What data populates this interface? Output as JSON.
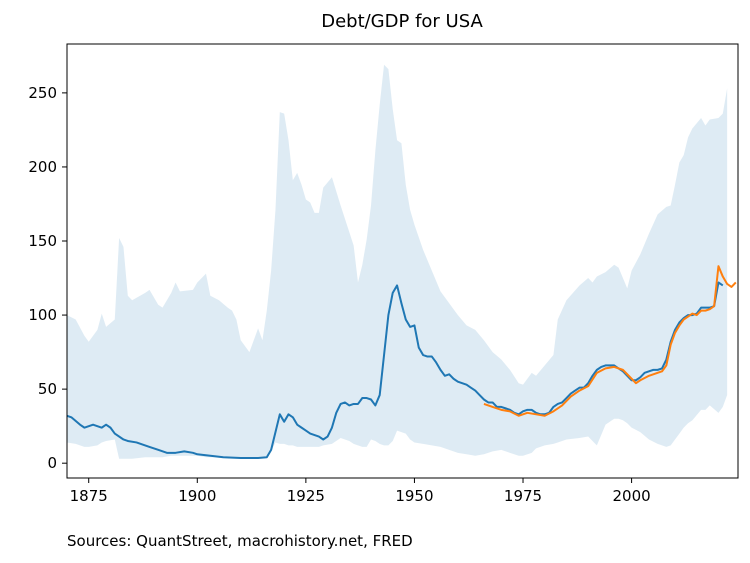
{
  "chart_data": {
    "type": "line",
    "title": "Debt/GDP for USA",
    "source": "Sources: QuantStreet, macrohistory.net, FRED",
    "xlim": [
      1870,
      2024.5
    ],
    "ylim": [
      -10,
      283
    ],
    "xticks": [
      1875,
      1900,
      1925,
      1950,
      1975,
      2000
    ],
    "yticks": [
      0,
      50,
      100,
      150,
      200,
      250
    ],
    "band": {
      "color": "#1f77b4",
      "alpha": 0.15,
      "x": [
        1870,
        1872,
        1874,
        1875,
        1877,
        1878,
        1879,
        1881,
        1882,
        1883,
        1884,
        1885,
        1888,
        1889,
        1891,
        1892,
        1894,
        1895,
        1896,
        1899,
        1900,
        1902,
        1903,
        1905,
        1907,
        1908,
        1909,
        1910,
        1912,
        1914,
        1915,
        1916,
        1917,
        1918,
        1919,
        1920,
        1921,
        1922,
        1923,
        1924,
        1925,
        1926,
        1927,
        1928,
        1929,
        1931,
        1933,
        1935,
        1936,
        1937,
        1938,
        1939,
        1940,
        1941,
        1942,
        1943,
        1944,
        1945,
        1946,
        1947,
        1948,
        1949,
        1950,
        1952,
        1954,
        1956,
        1958,
        1960,
        1962,
        1964,
        1966,
        1968,
        1970,
        1972,
        1974,
        1975,
        1977,
        1978,
        1980,
        1982,
        1983,
        1985,
        1988,
        1990,
        1991,
        1992,
        1994,
        1996,
        1997,
        1998,
        1999,
        2000,
        2002,
        2004,
        2006,
        2008,
        2009,
        2010,
        2011,
        2012,
        2013,
        2014,
        2016,
        2017,
        2018,
        2020,
        2021,
        2022
      ],
      "lower": [
        14,
        13,
        11,
        11,
        12,
        14,
        15,
        16,
        3,
        3,
        3,
        3,
        4,
        4,
        4,
        4,
        5,
        5,
        5,
        5,
        5,
        4,
        4,
        4,
        4,
        4,
        4,
        4,
        4,
        4,
        4,
        5,
        8,
        14,
        13,
        13,
        12,
        12,
        11,
        11,
        11,
        11,
        11,
        11,
        12,
        13,
        17,
        15,
        13,
        12,
        11,
        11,
        16,
        15,
        13,
        12,
        12,
        15,
        22,
        21,
        20,
        16,
        14,
        13,
        12,
        11,
        9,
        7,
        6,
        5,
        6,
        8,
        9,
        7,
        5,
        5,
        7,
        10,
        12,
        13,
        14,
        16,
        17,
        18,
        15,
        12,
        26,
        30,
        30,
        29,
        27,
        24,
        21,
        16,
        13,
        11,
        12,
        16,
        20,
        24,
        27,
        29,
        36,
        36,
        39,
        34,
        38,
        46
      ],
      "upper": [
        100,
        97,
        86,
        82,
        90,
        101,
        92,
        97,
        152,
        146,
        113,
        110,
        115,
        117,
        107,
        105,
        115,
        122,
        116,
        117,
        122,
        128,
        113,
        110,
        105,
        103,
        97,
        83,
        75,
        91,
        83,
        103,
        130,
        171,
        237,
        236,
        218,
        191,
        196,
        188,
        178,
        176,
        169,
        169,
        186,
        193,
        174,
        156,
        147,
        122,
        134,
        151,
        174,
        211,
        242,
        269,
        266,
        239,
        218,
        216,
        188,
        171,
        161,
        144,
        130,
        116,
        108,
        100,
        93,
        90,
        83,
        75,
        70,
        63,
        54,
        53,
        61,
        59,
        66,
        73,
        97,
        110,
        120,
        125,
        122,
        126,
        129,
        134,
        132,
        125,
        118,
        130,
        141,
        155,
        168,
        173,
        174,
        188,
        203,
        208,
        220,
        226,
        233,
        228,
        232,
        233,
        236,
        253
      ]
    },
    "series": [
      {
        "color": "#1f77b4",
        "x": [
          1870,
          1871,
          1873,
          1874,
          1876,
          1878,
          1879,
          1880,
          1881,
          1883,
          1884,
          1886,
          1888,
          1889,
          1891,
          1893,
          1895,
          1897,
          1899,
          1900,
          1903,
          1906,
          1910,
          1914,
          1916,
          1917,
          1918,
          1919,
          1920,
          1921,
          1922,
          1923,
          1924,
          1925,
          1926,
          1927,
          1928,
          1929,
          1930,
          1931,
          1932,
          1933,
          1934,
          1935,
          1936,
          1937,
          1938,
          1939,
          1940,
          1941,
          1942,
          1943,
          1944,
          1945,
          1946,
          1947,
          1948,
          1949,
          1950,
          1951,
          1952,
          1953,
          1954,
          1955,
          1956,
          1957,
          1958,
          1959,
          1960,
          1961,
          1962,
          1963,
          1964,
          1965,
          1966,
          1967,
          1968,
          1969,
          1970,
          1971,
          1972,
          1973,
          1974,
          1975,
          1976,
          1977,
          1978,
          1979,
          1980,
          1981,
          1982,
          1983,
          1984,
          1985,
          1986,
          1987,
          1988,
          1989,
          1990,
          1991,
          1992,
          1993,
          1994,
          1995,
          1996,
          1997,
          1998,
          1999,
          2000,
          2001,
          2002,
          2003,
          2004,
          2005,
          2006,
          2007,
          2008,
          2009,
          2010,
          2011,
          2012,
          2013,
          2014,
          2015,
          2016,
          2017,
          2018,
          2019,
          2020,
          2021
        ],
        "values": [
          32,
          31,
          26,
          24,
          26,
          24,
          26,
          24,
          20,
          16,
          15,
          14,
          12,
          11,
          9,
          7,
          7,
          8,
          7,
          6,
          5,
          4,
          3.5,
          3.5,
          4,
          9,
          21,
          33,
          28,
          33,
          31,
          26,
          24,
          22,
          20,
          19,
          18,
          16,
          18,
          24,
          34,
          40,
          41,
          39,
          40,
          40,
          44,
          44,
          43,
          39,
          46,
          73,
          100,
          115,
          120,
          108,
          97,
          92,
          93,
          78,
          73,
          72,
          72,
          68,
          63,
          59,
          60,
          57,
          55,
          54,
          53,
          51,
          49,
          46,
          43,
          41,
          41,
          38,
          38,
          37,
          36,
          34,
          33,
          35,
          36,
          36,
          34,
          33,
          33,
          34,
          38,
          40,
          41,
          44,
          47,
          49,
          51,
          51,
          54,
          59,
          63,
          65,
          66,
          66,
          66,
          64,
          62,
          59,
          56,
          56,
          58,
          61,
          62,
          63,
          63,
          64,
          70,
          82,
          90,
          95,
          98,
          100,
          100,
          101,
          105,
          105,
          105,
          106,
          122,
          120
        ]
      },
      {
        "color": "#ff7f0e",
        "x": [
          1966,
          1968,
          1970,
          1972,
          1974,
          1976,
          1978,
          1980,
          1982,
          1984,
          1986,
          1988,
          1990,
          1992,
          1994,
          1996,
          1998,
          2000,
          2001,
          2002,
          2004,
          2006,
          2007,
          2008,
          2009,
          2010,
          2011,
          2012,
          2013,
          2014,
          2015,
          2016,
          2017,
          2018,
          2019,
          2020,
          2021,
          2022,
          2023,
          2024
        ],
        "values": [
          40,
          38,
          36,
          35,
          32,
          34,
          33,
          32,
          35,
          39,
          45,
          49,
          52,
          61,
          64,
          65,
          63,
          57,
          54,
          56,
          59,
          61,
          62,
          66,
          80,
          88,
          93,
          97,
          99,
          101,
          100,
          103,
          103,
          104,
          106,
          133,
          126,
          121,
          119,
          122
        ]
      }
    ]
  }
}
